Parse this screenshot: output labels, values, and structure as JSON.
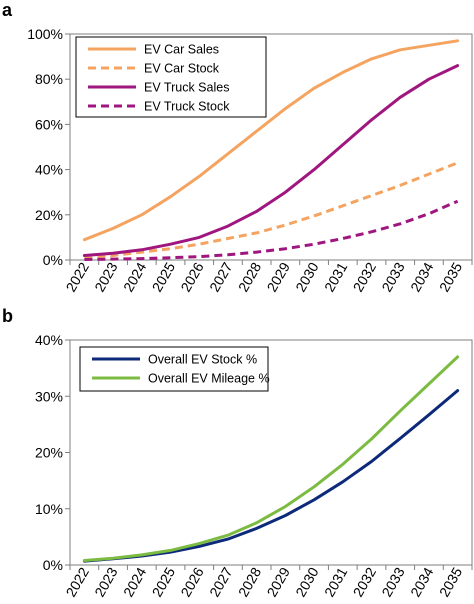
{
  "panels": [
    {
      "label": "a"
    },
    {
      "label": "b"
    }
  ],
  "chart_data": [
    {
      "type": "line",
      "x": [
        "2022",
        "2023",
        "2024",
        "2025",
        "2026",
        "2027",
        "2028",
        "2029",
        "2030",
        "2031",
        "2032",
        "2033",
        "2034",
        "2035"
      ],
      "ylim": [
        0,
        100
      ],
      "yticks": [
        0,
        20,
        40,
        60,
        80,
        100
      ],
      "ytick_labels": [
        "0%",
        "20%",
        "40%",
        "60%",
        "80%",
        "100%"
      ],
      "xlabel": "",
      "ylabel": "",
      "legend_position": "top-left",
      "grid": false,
      "series": [
        {
          "name": "EV Car Sales",
          "color": "#f4a460",
          "dash": "solid",
          "values": [
            9,
            14,
            20,
            28,
            37,
            47,
            57,
            67,
            76,
            83,
            89,
            93,
            95,
            97
          ]
        },
        {
          "name": "EV Car Stock",
          "color": "#f4a460",
          "dash": "dashed",
          "values": [
            1,
            2,
            3.5,
            5,
            7,
            9.5,
            12,
            15.5,
            19.5,
            24,
            28.5,
            33,
            38,
            43
          ]
        },
        {
          "name": "EV Truck Sales",
          "color": "#a0167f",
          "dash": "solid",
          "values": [
            2,
            3,
            4.5,
            7,
            10,
            15,
            21.5,
            30,
            40,
            51,
            62,
            72,
            80,
            86
          ]
        },
        {
          "name": "EV Truck Stock",
          "color": "#a0167f",
          "dash": "dashed",
          "values": [
            0.2,
            0.4,
            0.6,
            1,
            1.5,
            2.3,
            3.5,
            5,
            7,
            9.5,
            12.5,
            16,
            20.5,
            26
          ]
        }
      ]
    },
    {
      "type": "line",
      "x": [
        "2022",
        "2023",
        "2024",
        "2025",
        "2026",
        "2027",
        "2028",
        "2029",
        "2030",
        "2031",
        "2032",
        "2033",
        "2034",
        "2035"
      ],
      "ylim": [
        0,
        40
      ],
      "yticks": [
        0,
        10,
        20,
        30,
        40
      ],
      "ytick_labels": [
        "0%",
        "10%",
        "20%",
        "30%",
        "40%"
      ],
      "xlabel": "",
      "ylabel": "",
      "legend_position": "top-left",
      "grid": false,
      "series": [
        {
          "name": "Overall EV Stock %",
          "color": "#0d2a7a",
          "dash": "solid",
          "values": [
            0.7,
            1.1,
            1.6,
            2.3,
            3.3,
            4.6,
            6.5,
            8.8,
            11.6,
            14.8,
            18.4,
            22.5,
            26.7,
            31
          ]
        },
        {
          "name": "Overall EV Mileage %",
          "color": "#7cbb42",
          "dash": "solid",
          "values": [
            0.8,
            1.2,
            1.8,
            2.6,
            3.8,
            5.3,
            7.5,
            10.4,
            13.9,
            17.9,
            22.4,
            27.4,
            32.2,
            37
          ]
        }
      ]
    }
  ]
}
